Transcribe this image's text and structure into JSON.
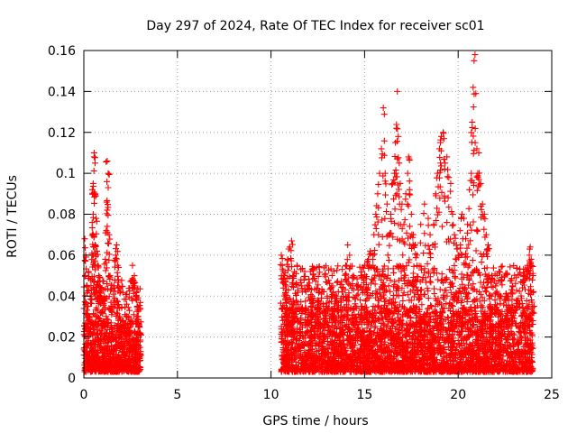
{
  "chart_data": {
    "type": "scatter",
    "title": "Day 297 of 2024, Rate Of TEC Index for receiver sc01",
    "xlabel": "GPS time / hours",
    "ylabel": "ROTI / TECUs",
    "xlim": [
      0,
      25
    ],
    "ylim": [
      0,
      0.16
    ],
    "xticks": [
      0,
      5,
      10,
      15,
      20,
      25
    ],
    "yticks": [
      0,
      0.02,
      0.04,
      0.06,
      0.08,
      0.1,
      0.12,
      0.14,
      0.16
    ],
    "xtick_labels": [
      "0",
      "5",
      "10",
      "15",
      "20",
      "25"
    ],
    "ytick_labels": [
      "0",
      "0.02",
      "0.04",
      "0.06",
      "0.08",
      "0.1",
      "0.12",
      "0.14",
      "0.16"
    ],
    "grid": true,
    "marker": "+",
    "color": "#ff0000",
    "series": [
      {
        "name": "ROTI",
        "points": [
          [
            0.05,
            0.068
          ],
          [
            0.1,
            0.06
          ],
          [
            0.15,
            0.045
          ],
          [
            0.2,
            0.035
          ],
          [
            0.25,
            0.052
          ],
          [
            0.3,
            0.03
          ],
          [
            0.35,
            0.048
          ],
          [
            0.4,
            0.04
          ],
          [
            0.45,
            0.092
          ],
          [
            0.5,
            0.095
          ],
          [
            0.5,
            0.08
          ],
          [
            0.55,
            0.108
          ],
          [
            0.55,
            0.11
          ],
          [
            0.6,
            0.105
          ],
          [
            0.6,
            0.09
          ],
          [
            0.65,
            0.078
          ],
          [
            0.5,
            0.07
          ],
          [
            0.45,
            0.06
          ],
          [
            0.6,
            0.065
          ],
          [
            0.7,
            0.062
          ],
          [
            0.75,
            0.055
          ],
          [
            0.8,
            0.05
          ],
          [
            0.85,
            0.045
          ],
          [
            0.9,
            0.042
          ],
          [
            1.0,
            0.038
          ],
          [
            1.1,
            0.04
          ],
          [
            1.15,
            0.058
          ],
          [
            1.2,
            0.072
          ],
          [
            1.25,
            0.082
          ],
          [
            1.3,
            0.093
          ],
          [
            1.3,
            0.1
          ],
          [
            1.25,
            0.106
          ],
          [
            1.35,
            0.07
          ],
          [
            1.4,
            0.05
          ],
          [
            1.5,
            0.035
          ],
          [
            1.6,
            0.045
          ],
          [
            1.7,
            0.06
          ],
          [
            1.75,
            0.065
          ],
          [
            1.8,
            0.055
          ],
          [
            1.85,
            0.048
          ],
          [
            1.9,
            0.03
          ],
          [
            2.0,
            0.025
          ],
          [
            2.1,
            0.028
          ],
          [
            2.2,
            0.026
          ],
          [
            2.4,
            0.03
          ],
          [
            2.6,
            0.055
          ],
          [
            2.7,
            0.05
          ],
          [
            2.8,
            0.042
          ],
          [
            2.85,
            0.035
          ],
          [
            2.9,
            0.03
          ],
          [
            2.95,
            0.026
          ],
          [
            3.0,
            0.022
          ],
          [
            10.55,
            0.06
          ],
          [
            10.6,
            0.055
          ],
          [
            10.7,
            0.05
          ],
          [
            10.8,
            0.045
          ],
          [
            10.9,
            0.058
          ],
          [
            11.0,
            0.064
          ],
          [
            11.1,
            0.067
          ],
          [
            11.2,
            0.05
          ],
          [
            11.4,
            0.055
          ],
          [
            11.6,
            0.048
          ],
          [
            11.8,
            0.052
          ],
          [
            12.0,
            0.045
          ],
          [
            12.2,
            0.04
          ],
          [
            12.5,
            0.038
          ],
          [
            12.8,
            0.035
          ],
          [
            13.0,
            0.04
          ],
          [
            13.3,
            0.045
          ],
          [
            13.5,
            0.04
          ],
          [
            13.8,
            0.042
          ],
          [
            14.0,
            0.055
          ],
          [
            14.1,
            0.065
          ],
          [
            14.2,
            0.06
          ],
          [
            14.4,
            0.05
          ],
          [
            14.6,
            0.045
          ],
          [
            14.8,
            0.05
          ],
          [
            15.0,
            0.055
          ],
          [
            15.2,
            0.058
          ],
          [
            15.3,
            0.062
          ],
          [
            15.5,
            0.07
          ],
          [
            15.6,
            0.08
          ],
          [
            15.7,
            0.09
          ],
          [
            15.8,
            0.1
          ],
          [
            15.9,
            0.112
          ],
          [
            16.0,
            0.132
          ],
          [
            16.1,
            0.1
          ],
          [
            16.2,
            0.085
          ],
          [
            16.3,
            0.07
          ],
          [
            16.4,
            0.08
          ],
          [
            16.5,
            0.095
          ],
          [
            16.6,
            0.1
          ],
          [
            16.65,
            0.115
          ],
          [
            16.7,
            0.122
          ],
          [
            16.75,
            0.14
          ],
          [
            16.8,
            0.118
          ],
          [
            16.85,
            0.105
          ],
          [
            16.9,
            0.095
          ],
          [
            17.0,
            0.085
          ],
          [
            17.1,
            0.075
          ],
          [
            17.2,
            0.09
          ],
          [
            17.3,
            0.1
          ],
          [
            17.35,
            0.108
          ],
          [
            17.4,
            0.092
          ],
          [
            17.5,
            0.08
          ],
          [
            17.6,
            0.07
          ],
          [
            17.7,
            0.065
          ],
          [
            17.8,
            0.06
          ],
          [
            18.0,
            0.075
          ],
          [
            18.2,
            0.085
          ],
          [
            18.4,
            0.078
          ],
          [
            18.5,
            0.07
          ],
          [
            18.7,
            0.075
          ],
          [
            18.8,
            0.09
          ],
          [
            18.9,
            0.1
          ],
          [
            19.0,
            0.112
          ],
          [
            19.05,
            0.115
          ],
          [
            19.1,
            0.118
          ],
          [
            19.2,
            0.12
          ],
          [
            19.3,
            0.105
          ],
          [
            19.4,
            0.108
          ],
          [
            19.5,
            0.098
          ],
          [
            19.6,
            0.095
          ],
          [
            19.7,
            0.08
          ],
          [
            19.8,
            0.07
          ],
          [
            19.9,
            0.065
          ],
          [
            20.0,
            0.06
          ],
          [
            20.1,
            0.072
          ],
          [
            20.2,
            0.08
          ],
          [
            20.3,
            0.078
          ],
          [
            20.4,
            0.068
          ],
          [
            20.5,
            0.075
          ],
          [
            20.6,
            0.092
          ],
          [
            20.7,
            0.1
          ],
          [
            20.75,
            0.125
          ],
          [
            20.8,
            0.142
          ],
          [
            20.85,
            0.155
          ],
          [
            20.9,
            0.158
          ],
          [
            21.0,
            0.112
          ],
          [
            21.05,
            0.1
          ],
          [
            21.1,
            0.11
          ],
          [
            21.2,
            0.095
          ],
          [
            21.3,
            0.085
          ],
          [
            21.4,
            0.08
          ],
          [
            21.5,
            0.07
          ],
          [
            21.6,
            0.065
          ],
          [
            21.8,
            0.05
          ],
          [
            22.0,
            0.045
          ],
          [
            22.3,
            0.048
          ],
          [
            22.6,
            0.04
          ],
          [
            22.9,
            0.045
          ],
          [
            23.2,
            0.038
          ],
          [
            23.5,
            0.05
          ],
          [
            23.7,
            0.055
          ],
          [
            23.8,
            0.06
          ],
          [
            23.85,
            0.064
          ],
          [
            23.9,
            0.058
          ],
          [
            24.0,
            0.05
          ]
        ],
        "dense_bands": [
          {
            "x_range": [
              0.0,
              3.05
            ],
            "y_range": [
              0.003,
              0.028
            ]
          },
          {
            "x_range": [
              10.55,
              24.0
            ],
            "y_range": [
              0.003,
              0.035
            ]
          }
        ]
      }
    ]
  }
}
